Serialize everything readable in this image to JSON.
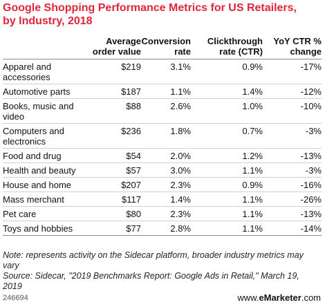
{
  "chart_data": {
    "type": "table",
    "title": "Google Shopping Performance Metrics for US Retailers, by Industry, 2018",
    "columns": [
      "Average order value",
      "Conversion rate",
      "Clickthrough rate (CTR)",
      "YoY CTR % change"
    ],
    "rows": [
      {
        "category": "Apparel and accessories",
        "values": [
          "$219",
          "3.1%",
          "0.9%",
          "-17%"
        ]
      },
      {
        "category": "Automotive parts",
        "values": [
          "$187",
          "1.1%",
          "1.4%",
          "-12%"
        ]
      },
      {
        "category": "Books, music and video",
        "values": [
          "$88",
          "2.6%",
          "1.0%",
          "-10%"
        ]
      },
      {
        "category": "Computers and electronics",
        "values": [
          "$236",
          "1.8%",
          "0.7%",
          "-3%"
        ]
      },
      {
        "category": "Food and drug",
        "values": [
          "$54",
          "2.0%",
          "1.2%",
          "-13%"
        ]
      },
      {
        "category": "Health and beauty",
        "values": [
          "$57",
          "3.0%",
          "1.1%",
          "-3%"
        ]
      },
      {
        "category": "House and home",
        "values": [
          "$207",
          "2.3%",
          "0.9%",
          "-16%"
        ]
      },
      {
        "category": "Mass merchant",
        "values": [
          "$117",
          "1.4%",
          "1.1%",
          "-26%"
        ]
      },
      {
        "category": "Pet care",
        "values": [
          "$80",
          "2.3%",
          "1.1%",
          "-13%"
        ]
      },
      {
        "category": "Toys and hobbies",
        "values": [
          "$77",
          "2.8%",
          "1.1%",
          "-14%"
        ]
      }
    ],
    "note": "Note: represents activity on the Sidecar platform, broader industry metrics may vary",
    "source": "Source: Sidecar, \"2019 Benchmarks Report: Google Ads in Retail,\" March 19, 2019"
  },
  "footer": {
    "id": "246694",
    "brand_prefix": "www.",
    "brand_name": "eMarketer",
    "brand_suffix": ".com"
  }
}
